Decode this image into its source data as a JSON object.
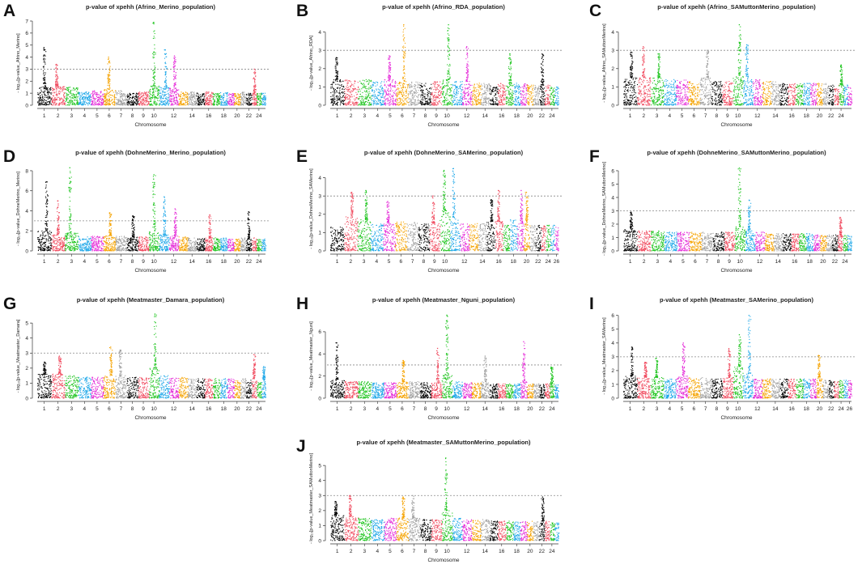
{
  "palette": [
    "#000000",
    "#f04b5f",
    "#1dc41d",
    "#1ea7e8",
    "#e52cd8",
    "#f5a300",
    "#a0a0a0"
  ],
  "common": {
    "xlabel": "Chromosome",
    "ylabel_prefix": "- log",
    "threshold": 3
  },
  "chart_data": [
    {
      "letter": "A",
      "type": "scatter",
      "title": "p-value of xpehh (Afrino_Merino_population)",
      "xlabel": "Chromosome",
      "ylabel": "- log₁₀[p-value_Afrino_Merino]",
      "ylim": [
        0,
        7
      ],
      "yticks": [
        0,
        1,
        2,
        3,
        4,
        5,
        6,
        7
      ],
      "threshold": 3,
      "n_chrom": 25,
      "xtick_labels": [
        "1",
        "2",
        "3",
        "4",
        "5",
        "6",
        "7",
        "8",
        "9",
        "10",
        "12",
        "14",
        "16",
        "18",
        "20",
        "22",
        "24"
      ],
      "base_max": [
        1.5,
        1.6,
        1.5,
        1.1,
        1.2,
        1.3,
        1.2,
        1.0,
        1.1,
        1.6,
        1.5,
        1.4,
        1.1,
        1.1,
        1.0,
        1.1,
        1.0,
        1.1,
        1.0,
        1.0,
        1.1,
        1.0,
        1.0,
        1.0,
        1.0
      ],
      "peaks": [
        {
          "chr": 1,
          "y": 4.8
        },
        {
          "chr": 2,
          "y": 3.4
        },
        {
          "chr": 6,
          "y": 4.0
        },
        {
          "chr": 10,
          "y": 6.9
        },
        {
          "chr": 11,
          "y": 4.6
        },
        {
          "chr": 12,
          "y": 4.1
        },
        {
          "chr": 23,
          "y": 3.0
        }
      ]
    },
    {
      "letter": "B",
      "type": "scatter",
      "title": "p-value of xpehh (Afrino_RDA_population)",
      "xlabel": "Chromosome",
      "ylabel": "- log₁₀[p-value_Afrino_RDA]",
      "ylim": [
        0,
        4.6
      ],
      "yticks": [
        0,
        1,
        2,
        3,
        4
      ],
      "threshold": 3,
      "n_chrom": 25,
      "xtick_labels": [
        "1",
        "2",
        "3",
        "4",
        "5",
        "6",
        "7",
        "8",
        "9",
        "10",
        "12",
        "14",
        "16",
        "18",
        "20",
        "22",
        "24"
      ],
      "base_max": [
        1.4,
        1.4,
        1.4,
        1.3,
        1.4,
        1.3,
        1.3,
        1.2,
        1.3,
        1.4,
        1.3,
        1.3,
        1.2,
        1.2,
        1.1,
        1.2,
        1.1,
        1.2,
        1.2,
        1.1,
        1.1,
        1.1,
        1.1,
        1.0,
        1.0
      ],
      "peaks": [
        {
          "chr": 1,
          "y": 2.6
        },
        {
          "chr": 5,
          "y": 2.7
        },
        {
          "chr": 6,
          "y": 4.4
        },
        {
          "chr": 10,
          "y": 4.4
        },
        {
          "chr": 12,
          "y": 3.2
        },
        {
          "chr": 17,
          "y": 2.8
        },
        {
          "chr": 22,
          "y": 2.8
        }
      ]
    },
    {
      "letter": "C",
      "type": "scatter",
      "title": "p-value of xpehh (Afrino_SAMuttonMerino_population)",
      "xlabel": "Chromosome",
      "ylabel": "- log₁₀[p-value_Afrino_SAMuttonMerino]",
      "ylim": [
        0,
        4.6
      ],
      "yticks": [
        0,
        1,
        2,
        3,
        4
      ],
      "threshold": 3,
      "n_chrom": 26,
      "xtick_labels": [
        "1",
        "2",
        "3",
        "4",
        "5",
        "6",
        "7",
        "8",
        "9",
        "10",
        "12",
        "14",
        "16",
        "18",
        "20",
        "22",
        "24"
      ],
      "base_max": [
        1.5,
        1.5,
        1.5,
        1.4,
        1.4,
        1.3,
        1.5,
        1.3,
        1.3,
        1.6,
        1.4,
        1.4,
        1.3,
        1.3,
        1.2,
        1.2,
        1.2,
        1.2,
        1.2,
        1.2,
        1.2,
        1.1,
        1.1,
        1.1,
        1.1,
        1.0
      ],
      "peaks": [
        {
          "chr": 1,
          "y": 2.9
        },
        {
          "chr": 2,
          "y": 3.2
        },
        {
          "chr": 3,
          "y": 2.8
        },
        {
          "chr": 7,
          "y": 3.0
        },
        {
          "chr": 10,
          "y": 4.4
        },
        {
          "chr": 11,
          "y": 3.3
        },
        {
          "chr": 24,
          "y": 2.2
        }
      ]
    },
    {
      "letter": "D",
      "type": "scatter",
      "title": "p-value of xpehh (DohneMerino_Merino_population)",
      "xlabel": "Chromosome",
      "ylabel": "- log₁₀[p-value_DohneMerino_Merino]",
      "ylim": [
        0,
        8.4
      ],
      "yticks": [
        0,
        2,
        4,
        6,
        8
      ],
      "threshold": 3,
      "n_chrom": 25,
      "xtick_labels": [
        "1",
        "2",
        "3",
        "4",
        "5",
        "6",
        "7",
        "8",
        "9",
        "10",
        "12",
        "14",
        "16",
        "18",
        "20",
        "22",
        "24"
      ],
      "base_max": [
        2.0,
        1.6,
        1.8,
        1.4,
        1.5,
        1.5,
        1.5,
        1.4,
        1.4,
        2.0,
        1.6,
        1.5,
        1.4,
        1.3,
        1.3,
        1.3,
        1.3,
        1.3,
        1.2,
        1.2,
        1.3,
        1.2,
        1.3,
        1.2,
        1.2
      ],
      "peaks": [
        {
          "chr": 1,
          "y": 6.9
        },
        {
          "chr": 2,
          "y": 5.0
        },
        {
          "chr": 3,
          "y": 8.3
        },
        {
          "chr": 6,
          "y": 3.8
        },
        {
          "chr": 8,
          "y": 3.5
        },
        {
          "chr": 10,
          "y": 7.6
        },
        {
          "chr": 11,
          "y": 5.4
        },
        {
          "chr": 12,
          "y": 4.2
        },
        {
          "chr": 16,
          "y": 3.6
        },
        {
          "chr": 22,
          "y": 3.9
        }
      ]
    },
    {
      "letter": "E",
      "type": "scatter",
      "title": "p-value of xpehh (DohneMerino_SAMerino_population)",
      "xlabel": "Chromosome",
      "ylabel": "- log₁₀[p-value_DohneMerino_SAMerino]",
      "ylim": [
        0,
        4.6
      ],
      "yticks": [
        0,
        1,
        2,
        3,
        4
      ],
      "threshold": 3,
      "n_chrom": 26,
      "xtick_labels": [
        "1",
        "2",
        "3",
        "4",
        "5",
        "6",
        "7",
        "8",
        "9",
        "10",
        "12",
        "14",
        "16",
        "18",
        "20",
        "22",
        "24",
        "26"
      ],
      "base_max": [
        1.3,
        1.9,
        1.7,
        1.5,
        1.5,
        1.6,
        1.6,
        1.5,
        1.5,
        2.2,
        1.8,
        1.5,
        1.5,
        1.5,
        1.6,
        1.6,
        1.4,
        1.7,
        1.5,
        1.5,
        1.5,
        1.4,
        1.4,
        1.4,
        1.4,
        1.3
      ],
      "peaks": [
        {
          "chr": 2,
          "y": 3.2
        },
        {
          "chr": 3,
          "y": 3.3
        },
        {
          "chr": 5,
          "y": 2.7
        },
        {
          "chr": 9,
          "y": 3.0
        },
        {
          "chr": 10,
          "y": 4.4
        },
        {
          "chr": 11,
          "y": 4.5
        },
        {
          "chr": 15,
          "y": 2.8
        },
        {
          "chr": 16,
          "y": 3.3
        },
        {
          "chr": 19,
          "y": 3.3
        },
        {
          "chr": 20,
          "y": 3.2
        }
      ]
    },
    {
      "letter": "F",
      "type": "scatter",
      "title": "p-value of xpehh (DohneMerino_SAMuttonMerino_population)",
      "xlabel": "Chromosome",
      "ylabel": "- log₁₀[p-value_DohneMerino_SAMuttonMerino]",
      "ylim": [
        0,
        6.3
      ],
      "yticks": [
        0,
        1,
        2,
        3,
        4,
        5,
        6
      ],
      "threshold": 3,
      "n_chrom": 25,
      "xtick_labels": [
        "1",
        "2",
        "3",
        "4",
        "5",
        "6",
        "7",
        "8",
        "9",
        "10",
        "12",
        "14",
        "16",
        "18",
        "20",
        "22",
        "24"
      ],
      "base_max": [
        1.6,
        1.5,
        1.5,
        1.4,
        1.4,
        1.4,
        1.4,
        1.4,
        1.4,
        1.8,
        1.5,
        1.4,
        1.3,
        1.3,
        1.3,
        1.3,
        1.3,
        1.3,
        1.2,
        1.2,
        1.2,
        1.2,
        1.2,
        1.2,
        1.2
      ],
      "peaks": [
        {
          "chr": 1,
          "y": 2.9
        },
        {
          "chr": 10,
          "y": 6.2
        },
        {
          "chr": 11,
          "y": 3.8
        },
        {
          "chr": 23,
          "y": 2.5
        }
      ]
    },
    {
      "letter": "G",
      "type": "scatter",
      "title": "p-value of xpehh (Meatmaster_Damara_population)",
      "xlabel": "Chromosome",
      "ylabel": "- log₁₀[p-value_Meatmaster_Damara]",
      "ylim": [
        0,
        5.6
      ],
      "yticks": [
        0,
        1,
        2,
        3,
        4,
        5
      ],
      "threshold": 3,
      "n_chrom": 25,
      "xtick_labels": [
        "1",
        "2",
        "3",
        "4",
        "5",
        "6",
        "7",
        "8",
        "9",
        "10",
        "12",
        "14",
        "16",
        "18",
        "20",
        "22",
        "24"
      ],
      "base_max": [
        1.6,
        1.6,
        1.5,
        1.4,
        1.4,
        1.5,
        1.5,
        1.4,
        1.4,
        2.0,
        1.5,
        1.4,
        1.4,
        1.3,
        1.3,
        1.3,
        1.3,
        1.3,
        1.3,
        1.2,
        1.3,
        1.2,
        1.3,
        1.2,
        1.2
      ],
      "peaks": [
        {
          "chr": 1,
          "y": 2.4
        },
        {
          "chr": 2,
          "y": 2.8
        },
        {
          "chr": 6,
          "y": 3.4
        },
        {
          "chr": 7,
          "y": 3.2
        },
        {
          "chr": 10,
          "y": 5.6
        },
        {
          "chr": 23,
          "y": 2.9
        },
        {
          "chr": 25,
          "y": 2.1
        }
      ]
    },
    {
      "letter": "H",
      "type": "scatter",
      "title": "p-value of xpehh (Meatmaster_Nguni_population)",
      "xlabel": "Chromosome",
      "ylabel": "- log₁₀[p-value_Meatmaster_Nguni]",
      "ylim": [
        0,
        7.6
      ],
      "yticks": [
        0,
        2,
        4,
        6
      ],
      "threshold": 3,
      "n_chrom": 25,
      "xtick_labels": [
        "1",
        "2",
        "3",
        "4",
        "5",
        "6",
        "7",
        "8",
        "9",
        "10",
        "12",
        "14",
        "16",
        "18",
        "20",
        "22",
        "24"
      ],
      "base_max": [
        1.7,
        1.5,
        1.5,
        1.4,
        1.4,
        1.5,
        1.5,
        1.4,
        1.4,
        2.2,
        1.5,
        1.4,
        1.4,
        1.5,
        1.3,
        1.3,
        1.3,
        1.3,
        1.5,
        1.3,
        1.3,
        1.3,
        1.3,
        1.3,
        1.3
      ],
      "peaks": [
        {
          "chr": 1,
          "y": 5.0
        },
        {
          "chr": 6,
          "y": 3.4
        },
        {
          "chr": 9,
          "y": 4.5
        },
        {
          "chr": 10,
          "y": 7.5
        },
        {
          "chr": 14,
          "y": 3.8
        },
        {
          "chr": 19,
          "y": 5.1
        },
        {
          "chr": 24,
          "y": 2.8
        }
      ]
    },
    {
      "letter": "I",
      "type": "scatter",
      "title": "p-value of xpehh (Meatmaster_SAMerino_population)",
      "xlabel": "Chromosome",
      "ylabel": "- log₁₀[p-value_Meatmaster_SAMerino]",
      "ylim": [
        0,
        6.1
      ],
      "yticks": [
        0,
        1,
        2,
        3,
        4,
        5,
        6
      ],
      "threshold": 3,
      "n_chrom": 26,
      "xtick_labels": [
        "1",
        "2",
        "3",
        "4",
        "5",
        "6",
        "7",
        "8",
        "9",
        "10",
        "12",
        "14",
        "16",
        "18",
        "20",
        "22",
        "24",
        "26"
      ],
      "base_max": [
        1.6,
        1.5,
        1.5,
        1.4,
        1.6,
        1.5,
        1.5,
        1.4,
        1.5,
        2.3,
        1.8,
        1.4,
        1.4,
        1.4,
        1.4,
        1.4,
        1.4,
        1.4,
        1.4,
        1.5,
        1.3,
        1.3,
        1.3,
        1.3,
        1.3,
        1.3
      ],
      "peaks": [
        {
          "chr": 1,
          "y": 3.7
        },
        {
          "chr": 2,
          "y": 2.6
        },
        {
          "chr": 3,
          "y": 2.9
        },
        {
          "chr": 5,
          "y": 4.0
        },
        {
          "chr": 9,
          "y": 3.6
        },
        {
          "chr": 10,
          "y": 4.6
        },
        {
          "chr": 11,
          "y": 6.0
        },
        {
          "chr": 20,
          "y": 3.1
        }
      ]
    },
    {
      "letter": "J",
      "type": "scatter",
      "title": "p-value of xpehh (Meatmaster_SAMuttonMerino_population)",
      "xlabel": "Chromosome",
      "ylabel": "- log₁₀[p-value_Meatmaster_SAMuttonMerino]",
      "ylim": [
        0,
        5.6
      ],
      "yticks": [
        0,
        1,
        2,
        3,
        4,
        5
      ],
      "threshold": 3,
      "n_chrom": 25,
      "xtick_labels": [
        "1",
        "2",
        "3",
        "4",
        "5",
        "6",
        "7",
        "8",
        "9",
        "10",
        "12",
        "14",
        "16",
        "18",
        "20",
        "22",
        "24"
      ],
      "base_max": [
        1.7,
        1.6,
        1.5,
        1.4,
        1.5,
        1.5,
        1.5,
        1.4,
        1.4,
        2.0,
        1.5,
        1.4,
        1.4,
        1.4,
        1.3,
        1.3,
        1.3,
        1.3,
        1.3,
        1.3,
        1.3,
        1.3,
        1.3,
        1.2,
        1.2
      ],
      "peaks": [
        {
          "chr": 1,
          "y": 2.6
        },
        {
          "chr": 2,
          "y": 3.0
        },
        {
          "chr": 6,
          "y": 2.9
        },
        {
          "chr": 7,
          "y": 3.0
        },
        {
          "chr": 10,
          "y": 5.5
        },
        {
          "chr": 22,
          "y": 2.9
        }
      ]
    }
  ]
}
